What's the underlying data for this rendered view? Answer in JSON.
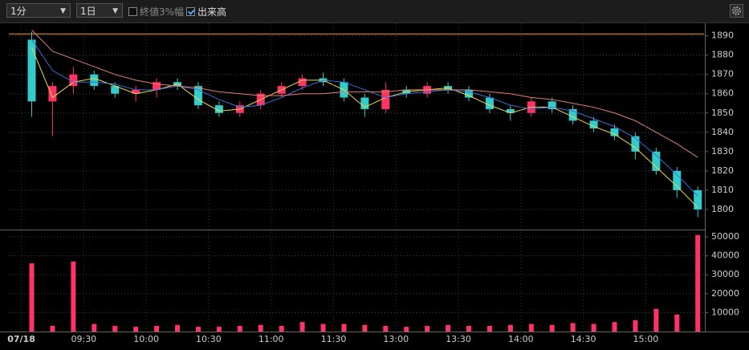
{
  "toolbar": {
    "interval": "1分",
    "period": "1日",
    "options": [
      {
        "label": "終値3%幅",
        "checked": false
      },
      {
        "label": "出来高",
        "checked": true
      }
    ]
  },
  "chart_data": [
    {
      "type": "candlestick",
      "x": [
        5,
        15,
        25,
        35,
        45,
        55,
        65,
        75,
        85,
        95,
        105,
        115,
        125,
        135,
        145,
        155,
        165,
        175,
        185,
        195,
        205,
        215,
        225,
        235,
        245,
        255,
        265,
        275,
        285,
        295,
        305,
        315,
        325
      ],
      "open": [
        1888,
        1856,
        1864,
        1870,
        1864,
        1860,
        1862,
        1866,
        1864,
        1854,
        1850,
        1854,
        1860,
        1864,
        1868,
        1866,
        1858,
        1852,
        1862,
        1860,
        1864,
        1862,
        1858,
        1852,
        1850,
        1856,
        1852,
        1846,
        1842,
        1838,
        1830,
        1820,
        1810
      ],
      "high": [
        1892,
        1866,
        1874,
        1872,
        1866,
        1864,
        1868,
        1868,
        1866,
        1856,
        1856,
        1862,
        1866,
        1870,
        1871,
        1868,
        1860,
        1866,
        1864,
        1866,
        1866,
        1864,
        1860,
        1854,
        1858,
        1858,
        1854,
        1848,
        1844,
        1840,
        1832,
        1822,
        1812
      ],
      "low": [
        1848,
        1838,
        1860,
        1862,
        1858,
        1856,
        1858,
        1862,
        1852,
        1848,
        1848,
        1852,
        1858,
        1862,
        1864,
        1856,
        1848,
        1850,
        1858,
        1858,
        1860,
        1856,
        1850,
        1846,
        1848,
        1850,
        1844,
        1840,
        1836,
        1826,
        1818,
        1806,
        1796
      ],
      "close": [
        1856,
        1864,
        1870,
        1864,
        1860,
        1862,
        1866,
        1864,
        1854,
        1850,
        1854,
        1860,
        1864,
        1868,
        1866,
        1858,
        1852,
        1862,
        1860,
        1864,
        1862,
        1858,
        1852,
        1850,
        1856,
        1852,
        1846,
        1842,
        1838,
        1830,
        1820,
        1810,
        1800
      ],
      "up_color": "#ff3366",
      "down_color": "#33cccc",
      "series": [
        {
          "color": "#e8d84a",
          "values": [
            1884,
            1858,
            1866,
            1868,
            1864,
            1860,
            1862,
            1865,
            1857,
            1851,
            1852,
            1857,
            1862,
            1867,
            1867,
            1862,
            1853,
            1858,
            1861,
            1862,
            1863,
            1859,
            1854,
            1850,
            1853,
            1853,
            1848,
            1843,
            1839,
            1832,
            1822,
            1812,
            1801
          ]
        },
        {
          "color": "#3a6fd8",
          "values": [
            1888,
            1872,
            1866,
            1866,
            1865,
            1862,
            1862,
            1864,
            1862,
            1857,
            1853,
            1854,
            1858,
            1863,
            1867,
            1866,
            1862,
            1858,
            1860,
            1861,
            1862,
            1861,
            1858,
            1854,
            1852,
            1853,
            1851,
            1847,
            1843,
            1837,
            1828,
            1818,
            1807
          ]
        },
        {
          "color": "#e08070",
          "values": [
            1893,
            1882,
            1878,
            1874,
            1870,
            1867,
            1865,
            1864,
            1863,
            1861,
            1860,
            1859,
            1859,
            1860,
            1860,
            1861,
            1861,
            1861,
            1862,
            1862,
            1862,
            1862,
            1861,
            1860,
            1858,
            1857,
            1855,
            1853,
            1850,
            1846,
            1840,
            1834,
            1827
          ]
        }
      ],
      "reference_line": {
        "value": 1891,
        "color": "#ff9933"
      },
      "xlim": [
        -6,
        328
      ],
      "ylim": [
        1790,
        1894
      ],
      "yticks": [
        1800,
        1810,
        1820,
        1830,
        1840,
        1850,
        1860,
        1870,
        1880,
        1890
      ],
      "grid": true
    },
    {
      "type": "bar",
      "x": [
        5,
        15,
        25,
        35,
        45,
        55,
        65,
        75,
        85,
        95,
        105,
        115,
        125,
        135,
        145,
        155,
        165,
        175,
        185,
        195,
        205,
        215,
        225,
        235,
        245,
        255,
        265,
        275,
        285,
        295,
        305,
        315,
        325
      ],
      "values": [
        36000,
        3000,
        37000,
        4000,
        3000,
        2500,
        3000,
        3500,
        2500,
        2500,
        3000,
        3500,
        3000,
        5000,
        4000,
        4000,
        3500,
        3000,
        2500,
        3000,
        3500,
        3000,
        3000,
        3500,
        4000,
        3500,
        4500,
        4000,
        5000,
        6000,
        12000,
        9000,
        51000
      ],
      "color": "#ff3366",
      "xlim": [
        -6,
        328
      ],
      "xticks": [
        {
          "value": 0,
          "label": "07/18"
        },
        {
          "value": 30,
          "label": "09:30"
        },
        {
          "value": 60,
          "label": "10:00"
        },
        {
          "value": 90,
          "label": "10:30"
        },
        {
          "value": 120,
          "label": "11:00"
        },
        {
          "value": 150,
          "label": "11:30"
        },
        {
          "value": 180,
          "label": "13:00"
        },
        {
          "value": 210,
          "label": "13:30"
        },
        {
          "value": 240,
          "label": "14:00"
        },
        {
          "value": 270,
          "label": "14:30"
        },
        {
          "value": 300,
          "label": "15:00"
        }
      ],
      "ylim": [
        0,
        53000
      ],
      "yticks": [
        10000,
        20000,
        30000,
        40000,
        50000
      ],
      "grid": true
    }
  ]
}
